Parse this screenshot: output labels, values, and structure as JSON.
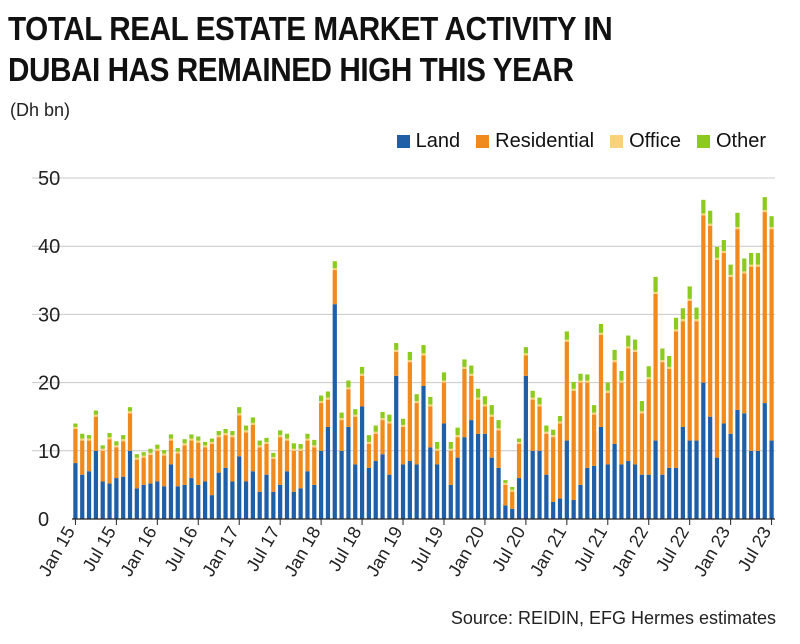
{
  "chart_data": {
    "type": "bar",
    "stacked": true,
    "title": "TOTAL REAL ESTATE MARKET ACTIVITY IN DUBAI HAS REMAINED HIGH THIS YEAR",
    "unit_label": "(Dh bn)",
    "source": "Source: REIDIN, EFG Hermes estimates",
    "ylim": [
      0,
      50
    ],
    "yticks": [
      0,
      10,
      20,
      30,
      40,
      50
    ],
    "grid": true,
    "legend_position": "top-right",
    "x_tick_labels": [
      "Jan 15",
      "Jul 15",
      "Jan 16",
      "Jul 16",
      "Jan 17",
      "Jul 17",
      "Jan 18",
      "Jul 18",
      "Jan 19",
      "Jul 19",
      "Jan 20",
      "Jul 20",
      "Jan 21",
      "Jul 21",
      "Jan 22",
      "Jul 22",
      "Jan 23",
      "Jul 23"
    ],
    "series": [
      {
        "name": "Land",
        "color": "#1f5fa8",
        "values": [
          8.2,
          6.5,
          7,
          10,
          5.5,
          5.2,
          6,
          6.2,
          10,
          4.5,
          5,
          5.2,
          5.5,
          4.8,
          8,
          4.8,
          5,
          6,
          5,
          5.5,
          3.5,
          6.8,
          7.5,
          5.5,
          9.2,
          5.5,
          7,
          4,
          6.5,
          4,
          5,
          7,
          4,
          4.5,
          7,
          5,
          10,
          13.5,
          31.5,
          10,
          13.5,
          8,
          16.5,
          7.5,
          8.5,
          9.5,
          6.5,
          21,
          8,
          8.5,
          8,
          19.5,
          10.5,
          8,
          14,
          5,
          9,
          12,
          14.5,
          12.5,
          12.5,
          9,
          7.5,
          2,
          1.5,
          6,
          21,
          10,
          10,
          6.5,
          2.5,
          3,
          11.5,
          2.8,
          5,
          7.5,
          7.8,
          13.5,
          8,
          11,
          8,
          8.5,
          8,
          6.5,
          6.5,
          11.5,
          6.5,
          7.5,
          7.5,
          13.5,
          11.5,
          11.5,
          20,
          15,
          9,
          14,
          12.5,
          16,
          15.5,
          10,
          10,
          17,
          11.5
        ]
      },
      {
        "name": "Residential",
        "color": "#f08a1c",
        "values": [
          5,
          5,
          4.5,
          5,
          4.5,
          6.5,
          4.5,
          5.2,
          5.5,
          4.2,
          4,
          4.2,
          4.5,
          4.5,
          3.5,
          4.8,
          5.8,
          5.5,
          6.2,
          5,
          7.5,
          5.2,
          4.8,
          6.5,
          6,
          7.2,
          6.8,
          6.5,
          4.5,
          4.8,
          7,
          4.5,
          6,
          5.5,
          4.5,
          5.5,
          7,
          4,
          5,
          4.5,
          5.5,
          7,
          4.5,
          3.5,
          4,
          5,
          7.5,
          3.5,
          5.5,
          14.5,
          9,
          4.5,
          6,
          2,
          6,
          5,
          3,
          10,
          6.5,
          5,
          4,
          6,
          5.5,
          3,
          2.5,
          5,
          3,
          7.5,
          6.5,
          6,
          9.5,
          11,
          14.5,
          16,
          15,
          12.5,
          7.5,
          13.5,
          10.5,
          12,
          12,
          16.5,
          16.5,
          9,
          14,
          21.5,
          16.5,
          14.5,
          20,
          15.5,
          20.5,
          17.5,
          24.5,
          28,
          29,
          25,
          23,
          26.5,
          20.5,
          27,
          27,
          28,
          31
        ]
      },
      {
        "name": "Office",
        "color": "#f9d27a",
        "values": [
          0.3,
          0.3,
          0.3,
          0.3,
          0.3,
          0.3,
          0.3,
          0.3,
          0.3,
          0.3,
          0.3,
          0.3,
          0.3,
          0.3,
          0.3,
          0.3,
          0.3,
          0.3,
          0.3,
          0.3,
          0.3,
          0.3,
          0.3,
          0.3,
          0.3,
          0.3,
          0.3,
          0.3,
          0.3,
          0.3,
          0.3,
          0.3,
          0.3,
          0.3,
          0.3,
          0.3,
          0.3,
          0.3,
          0.3,
          0.3,
          0.3,
          0.3,
          0.3,
          0.3,
          0.3,
          0.3,
          0.3,
          0.3,
          0.3,
          0.3,
          0.3,
          0.3,
          0.3,
          0.3,
          0.3,
          0.3,
          0.3,
          0.3,
          0.3,
          0.3,
          0.3,
          0.3,
          0.3,
          0.3,
          0.3,
          0.3,
          0.3,
          0.3,
          0.3,
          0.3,
          0.3,
          0.3,
          0.3,
          0.3,
          0.3,
          0.3,
          0.3,
          0.3,
          0.3,
          0.3,
          0.3,
          0.3,
          0.3,
          0.3,
          0.3,
          0.3,
          0.3,
          0.3,
          0.3,
          0.3,
          0.3,
          0.3,
          0.3,
          0.3,
          0.3,
          0.3,
          0.3,
          0.3,
          0.3,
          0.3,
          0.3,
          0.3,
          0.3
        ]
      },
      {
        "name": "Other",
        "color": "#8ccb1e",
        "values": [
          0.5,
          0.7,
          0.5,
          0.6,
          0.5,
          0.6,
          0.6,
          0.6,
          0.6,
          0.5,
          0.5,
          0.6,
          0.6,
          0.5,
          0.6,
          0.5,
          0.6,
          0.6,
          0.6,
          0.5,
          0.5,
          0.6,
          0.6,
          0.6,
          0.9,
          0.7,
          0.8,
          0.7,
          0.6,
          0.6,
          0.7,
          0.7,
          0.8,
          0.7,
          0.7,
          0.8,
          0.8,
          0.9,
          1,
          0.8,
          1,
          0.8,
          1,
          1,
          0.9,
          0.9,
          1,
          1,
          0.9,
          1.2,
          1,
          1.2,
          1.1,
          1,
          1.2,
          1,
          1.1,
          1.1,
          1.2,
          1.3,
          1.2,
          1.4,
          1.2,
          0.4,
          0.4,
          0.5,
          0.9,
          1,
          1,
          0.9,
          0.8,
          0.8,
          1.2,
          1,
          1,
          0.9,
          1.1,
          1.3,
          1.2,
          1.5,
          1.4,
          1.6,
          1.5,
          1.5,
          1.6,
          2.2,
          1.7,
          1.6,
          1.7,
          1.6,
          1.8,
          1.7,
          2,
          1.9,
          1.6,
          1.6,
          1.5,
          2.1,
          1.9,
          1.7,
          1.7,
          1.9,
          1.6
        ]
      }
    ]
  }
}
